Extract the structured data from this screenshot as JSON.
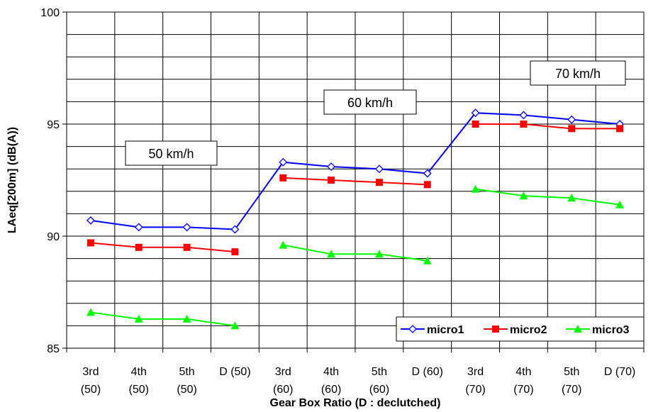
{
  "chart_data": {
    "type": "line",
    "title": "",
    "xlabel": "Gear Box Ratio (D : declutched)",
    "ylabel": "LAeq[200m]  (dB(A))",
    "ylim": [
      85,
      100
    ],
    "yticks": [
      85,
      90,
      95,
      100
    ],
    "grid": true,
    "legend_position": "bottom-right",
    "categories": [
      [
        "3rd",
        "(50)"
      ],
      [
        "4th",
        "(50)"
      ],
      [
        "5th",
        "(50)"
      ],
      [
        "D (50)",
        ""
      ],
      [
        "3rd",
        "(60)"
      ],
      [
        "4th",
        "(60)"
      ],
      [
        "5th",
        "(60)"
      ],
      [
        "D (60)",
        ""
      ],
      [
        "3rd",
        "(70)"
      ],
      [
        "4th",
        "(70)"
      ],
      [
        "5th",
        "(70)"
      ],
      [
        "D (70)",
        ""
      ]
    ],
    "groups": [
      {
        "label": "50 km/h",
        "indices": [
          0,
          1,
          2,
          3
        ]
      },
      {
        "label": "60 km/h",
        "indices": [
          4,
          5,
          6,
          7
        ]
      },
      {
        "label": "70 km/h",
        "indices": [
          8,
          9,
          10,
          11
        ]
      }
    ],
    "series": [
      {
        "name": "micro1",
        "color": "#0000ff",
        "marker": "diamond-open",
        "connect_groups": true,
        "values": [
          90.7,
          90.4,
          90.4,
          90.3,
          93.3,
          93.1,
          93.0,
          92.8,
          95.5,
          95.4,
          95.2,
          95.0
        ]
      },
      {
        "name": "micro2",
        "color": "#ff0000",
        "marker": "square",
        "connect_groups": false,
        "values": [
          89.7,
          89.5,
          89.5,
          89.3,
          92.6,
          92.5,
          92.4,
          92.3,
          95.0,
          95.0,
          94.8,
          94.8
        ]
      },
      {
        "name": "micro3",
        "color": "#00ff00",
        "marker": "triangle",
        "connect_groups": false,
        "values": [
          86.6,
          86.3,
          86.3,
          86.0,
          89.6,
          89.2,
          89.2,
          88.9,
          92.1,
          91.8,
          91.7,
          91.4
        ]
      }
    ]
  }
}
